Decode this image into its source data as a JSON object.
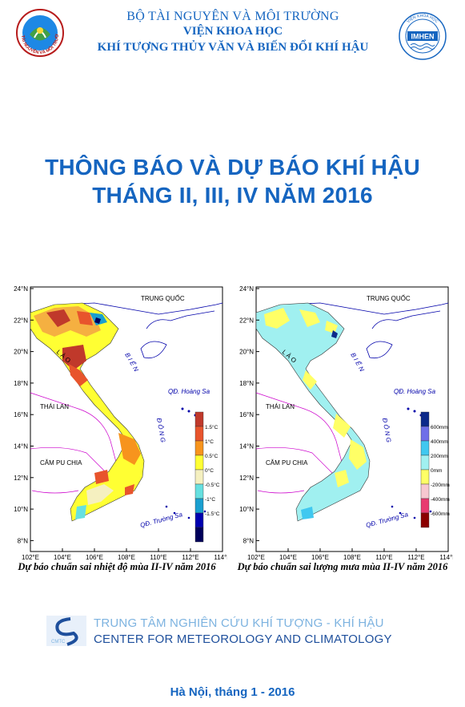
{
  "header": {
    "ministry": "BỘ TÀI NGUYÊN VÀ MÔI TRƯỜNG",
    "institute": "VIỆN KHOA HỌC",
    "institute_full": "KHÍ TƯỢNG THỦY VĂN VÀ BIẾN ĐỔI KHÍ HẬU",
    "left_logo_ring": "TÀI NGUYÊN VÀ MÔI TRƯỜNG",
    "right_logo_text": "IMHEN",
    "right_logo_ring": "VIỆN KHOA HỌC"
  },
  "title": {
    "line1": "THÔNG BÁO VÀ DỰ BÁO KHÍ HẬU",
    "line2": "THÁNG II, III, IV NĂM 2016"
  },
  "maps": {
    "lat_labels": [
      "24°N",
      "22°N",
      "20°N",
      "18°N",
      "16°N",
      "14°N",
      "12°N",
      "10°N",
      "8°N"
    ],
    "lon_labels": [
      "102°E",
      "104°E",
      "106°E",
      "108°E",
      "110°E",
      "112°E",
      "114°E"
    ],
    "place_labels": {
      "china": "TRUNG QUỐC",
      "laos": "L À O",
      "thailand": "THÁI LAN",
      "cambodia": "CĂM PU CHIA",
      "sea": "B I Ể N",
      "sea2": "Đ Ô N G",
      "hoang_sa": "QĐ. Hoàng Sa",
      "truong_sa": "QĐ. Trường Sa"
    },
    "temperature": {
      "caption": "Dự báo chuẩn sai nhiệt độ mùa II-IV năm 2016",
      "legend": [
        "1.5°C",
        "1°C",
        "0.5°C",
        "0°C",
        "-0.5°C",
        "-1°C",
        "-1.5°C"
      ],
      "colors": [
        "#c0392b",
        "#e8542c",
        "#f7941d",
        "#ffff33",
        "#f5f0c0",
        "#66e0e0",
        "#1a9fd0",
        "#0000b0",
        "#00005a"
      ]
    },
    "rainfall": {
      "caption": "Dự báo chuẩn sai lượng mưa mùa II-IV năm 2016",
      "legend": [
        "600mm",
        "400mm",
        "200mm",
        "0mm",
        "-200mm",
        "-400mm",
        "-600mm"
      ],
      "colors": [
        "#0d2a8a",
        "#6f6fe8",
        "#40c8f0",
        "#a0f0f0",
        "#ffff66",
        "#f7c8d0",
        "#e83a70",
        "#8b0000"
      ]
    }
  },
  "center": {
    "vi": "TRUNG TÂM NGHIÊN CỨU KHÍ TƯỢNG - KHÍ HẬU",
    "en": "CENTER FOR METEOROLOGY AND CLIMATOLOGY",
    "logo_text": "CMTC"
  },
  "footer": "Hà Nội, tháng 1 - 2016"
}
